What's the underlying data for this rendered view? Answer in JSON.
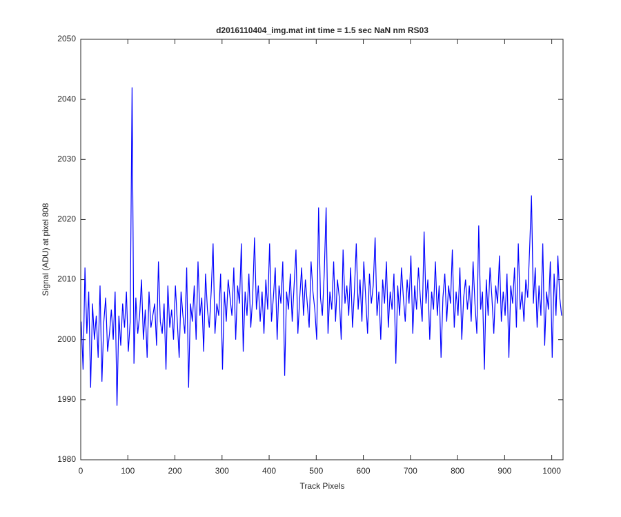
{
  "chart_data": {
    "type": "line",
    "title": "d2016110404_img.mat int time = 1.5 sec  NaN nm RS03",
    "xlabel": "Track Pixels",
    "ylabel": "Signal (ADU) at pixel 808",
    "color": "#0000ff",
    "xlim": [
      0,
      1024
    ],
    "ylim": [
      1980,
      2050
    ],
    "xticks": [
      0,
      100,
      200,
      300,
      400,
      500,
      600,
      700,
      800,
      900,
      1000
    ],
    "yticks": [
      1980,
      1990,
      2000,
      2010,
      2020,
      2030,
      2040,
      2050
    ],
    "x": [
      1,
      5,
      9,
      13,
      17,
      21,
      25,
      29,
      33,
      37,
      41,
      45,
      49,
      53,
      57,
      61,
      65,
      69,
      73,
      77,
      81,
      85,
      89,
      93,
      97,
      101,
      105,
      109,
      113,
      117,
      121,
      125,
      129,
      133,
      137,
      141,
      145,
      149,
      153,
      157,
      161,
      165,
      169,
      173,
      177,
      181,
      185,
      189,
      193,
      197,
      201,
      205,
      209,
      213,
      217,
      221,
      225,
      229,
      233,
      237,
      241,
      245,
      249,
      253,
      257,
      261,
      265,
      269,
      273,
      277,
      281,
      285,
      289,
      293,
      297,
      301,
      305,
      309,
      313,
      317,
      321,
      325,
      329,
      333,
      337,
      341,
      345,
      349,
      353,
      357,
      361,
      365,
      369,
      373,
      377,
      381,
      385,
      389,
      393,
      397,
      401,
      405,
      409,
      413,
      417,
      421,
      425,
      429,
      433,
      437,
      441,
      445,
      449,
      453,
      457,
      461,
      465,
      469,
      473,
      477,
      481,
      485,
      489,
      493,
      497,
      501,
      505,
      509,
      513,
      517,
      521,
      525,
      529,
      533,
      537,
      541,
      545,
      549,
      553,
      557,
      561,
      565,
      569,
      573,
      577,
      581,
      585,
      589,
      593,
      597,
      601,
      605,
      609,
      613,
      617,
      621,
      625,
      629,
      633,
      637,
      641,
      645,
      649,
      653,
      657,
      661,
      665,
      669,
      673,
      677,
      681,
      685,
      689,
      693,
      697,
      701,
      705,
      709,
      713,
      717,
      721,
      725,
      729,
      733,
      737,
      741,
      745,
      749,
      753,
      757,
      761,
      765,
      769,
      773,
      777,
      781,
      785,
      789,
      793,
      797,
      801,
      805,
      809,
      813,
      817,
      821,
      825,
      829,
      833,
      837,
      841,
      845,
      849,
      853,
      857,
      861,
      865,
      869,
      873,
      877,
      881,
      885,
      889,
      893,
      897,
      901,
      905,
      909,
      913,
      917,
      921,
      925,
      929,
      933,
      937,
      941,
      945,
      949,
      953,
      957,
      961,
      965,
      969,
      973,
      977,
      981,
      985,
      989,
      993,
      997,
      1001,
      1005,
      1009,
      1013,
      1017,
      1021
    ],
    "values": [
      2003,
      1995,
      2012,
      2001,
      2008,
      1992,
      2006,
      2000,
      2004,
      1997,
      2009,
      1993,
      2003,
      2007,
      1998,
      2001,
      2005,
      2000,
      2008,
      1989,
      2004,
      1999,
      2006,
      2002,
      2008,
      1998,
      2003,
      2042,
      1996,
      2007,
      2001,
      2004,
      2010,
      2000,
      2005,
      1997,
      2008,
      2002,
      2004,
      2006,
      1999,
      2013,
      2003,
      2001,
      2006,
      1995,
      2009,
      2002,
      2005,
      2000,
      2009,
      2003,
      1997,
      2008,
      2004,
      2001,
      2012,
      1992,
      2006,
      2003,
      2009,
      2000,
      2013,
      2004,
      2007,
      1998,
      2011,
      2005,
      2002,
      2008,
      2016,
      2001,
      2006,
      2004,
      2011,
      1995,
      2008,
      2003,
      2010,
      2007,
      2004,
      2012,
      2000,
      2009,
      2006,
      2016,
      1998,
      2008,
      2004,
      2011,
      2002,
      2007,
      2017,
      2005,
      2009,
      2003,
      2008,
      2001,
      2010,
      2005,
      2016,
      2003,
      2007,
      2012,
      2000,
      2009,
      2006,
      2013,
      1994,
      2008,
      2005,
      2011,
      2003,
      2009,
      2015,
      2001,
      2007,
      2012,
      2004,
      2010,
      2006,
      2002,
      2013,
      2008,
      2005,
      2000,
      2022,
      2007,
      2004,
      2011,
      2022,
      2001,
      2008,
      2005,
      2013,
      2003,
      2010,
      2007,
      2000,
      2015,
      2006,
      2009,
      2004,
      2012,
      2002,
      2008,
      2016,
      2005,
      2010,
      2003,
      2013,
      2007,
      2001,
      2011,
      2006,
      2009,
      2017,
      2004,
      2008,
      2000,
      2010,
      2006,
      2013,
      2002,
      2008,
      2005,
      2011,
      1996,
      2009,
      2004,
      2012,
      2007,
      2003,
      2010,
      2006,
      2014,
      2001,
      2009,
      2005,
      2012,
      2007,
      2003,
      2018,
      2006,
      2010,
      2000,
      2008,
      2005,
      2013,
      2004,
      2009,
      1997,
      2007,
      2011,
      2003,
      2009,
      2006,
      2015,
      2002,
      2008,
      2004,
      2012,
      2000,
      2007,
      2010,
      2005,
      2009,
      2003,
      2013,
      2006,
      2001,
      2019,
      2005,
      2008,
      1995,
      2010,
      2004,
      2012,
      2007,
      2001,
      2009,
      2006,
      2014,
      2003,
      2008,
      2004,
      2011,
      1997,
      2009,
      2006,
      2012,
      2002,
      2016,
      2005,
      2008,
      2003,
      2010,
      2007,
      2015,
      2024,
      2006,
      2012,
      2002,
      2009,
      2004,
      2016,
      1999,
      2008,
      2005,
      2013,
      1997,
      2011,
      2004,
      2014,
      2007,
      2004
    ]
  }
}
